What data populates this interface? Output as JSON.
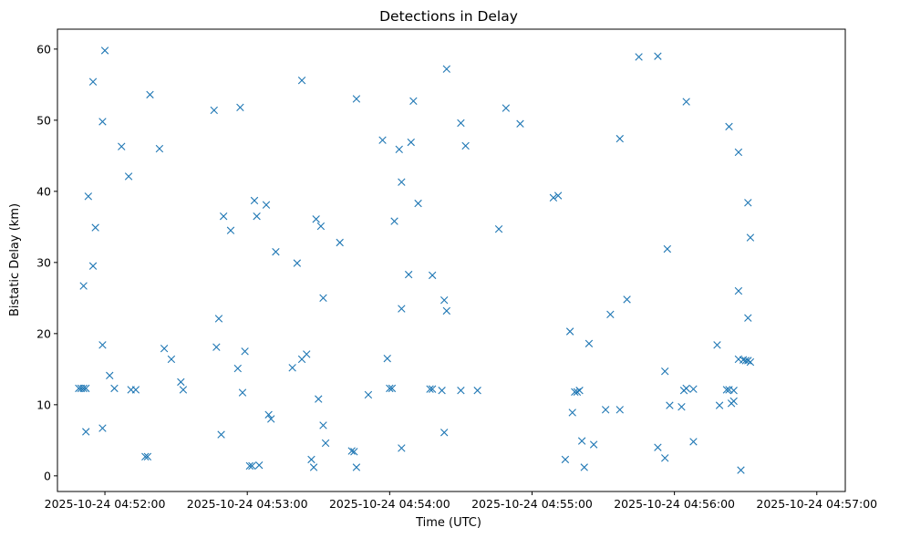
{
  "chart_data": {
    "type": "scatter",
    "title": "Detections in Delay",
    "xlabel": "Time (UTC)",
    "ylabel": "Bistatic Delay (km)",
    "x_ticks": [
      "2025-10-24 04:52:00",
      "2025-10-24 04:53:00",
      "2025-10-24 04:54:00",
      "2025-10-24 04:55:00",
      "2025-10-24 04:56:00",
      "2025-10-24 04:57:00"
    ],
    "y_ticks": [
      "0",
      "10",
      "20",
      "30",
      "40",
      "50",
      "60"
    ],
    "xlim": [
      "2025-10-24 04:51:40",
      "2025-10-24 04:57:12"
    ],
    "ylim": [
      -2.2,
      62.8
    ],
    "grid": false,
    "marker": "x",
    "color": "#1f77b4",
    "series": [
      {
        "points": [
          [
            "2025-10-24 04:51:49",
            12.3
          ],
          [
            "2025-10-24 04:51:50",
            12.3
          ],
          [
            "2025-10-24 04:51:51",
            12.3
          ],
          [
            "2025-10-24 04:51:52",
            12.3
          ],
          [
            "2025-10-24 04:51:51",
            26.7
          ],
          [
            "2025-10-24 04:51:52",
            6.2
          ],
          [
            "2025-10-24 04:51:53",
            39.3
          ],
          [
            "2025-10-24 04:51:55",
            29.5
          ],
          [
            "2025-10-24 04:51:55",
            55.4
          ],
          [
            "2025-10-24 04:51:56",
            34.9
          ],
          [
            "2025-10-24 04:51:59",
            49.8
          ],
          [
            "2025-10-24 04:51:59",
            18.4
          ],
          [
            "2025-10-24 04:51:59",
            6.7
          ],
          [
            "2025-10-24 04:52:00",
            59.8
          ],
          [
            "2025-10-24 04:52:02",
            14.1
          ],
          [
            "2025-10-24 04:52:04",
            12.3
          ],
          [
            "2025-10-24 04:52:07",
            46.3
          ],
          [
            "2025-10-24 04:52:10",
            42.1
          ],
          [
            "2025-10-24 04:52:11",
            12.1
          ],
          [
            "2025-10-24 04:52:13",
            12.1
          ],
          [
            "2025-10-24 04:52:17",
            2.7
          ],
          [
            "2025-10-24 04:52:18",
            2.7
          ],
          [
            "2025-10-24 04:52:19",
            53.6
          ],
          [
            "2025-10-24 04:52:23",
            46.0
          ],
          [
            "2025-10-24 04:52:25",
            17.9
          ],
          [
            "2025-10-24 04:52:28",
            16.4
          ],
          [
            "2025-10-24 04:52:32",
            13.2
          ],
          [
            "2025-10-24 04:52:33",
            12.1
          ],
          [
            "2025-10-24 04:52:46",
            51.4
          ],
          [
            "2025-10-24 04:52:47",
            18.1
          ],
          [
            "2025-10-24 04:52:48",
            22.1
          ],
          [
            "2025-10-24 04:52:49",
            5.8
          ],
          [
            "2025-10-24 04:52:50",
            36.5
          ],
          [
            "2025-10-24 04:52:53",
            34.5
          ],
          [
            "2025-10-24 04:52:56",
            15.1
          ],
          [
            "2025-10-24 04:52:57",
            51.8
          ],
          [
            "2025-10-24 04:52:58",
            11.7
          ],
          [
            "2025-10-24 04:52:59",
            17.5
          ],
          [
            "2025-10-24 04:53:01",
            1.4
          ],
          [
            "2025-10-24 04:53:02",
            1.4
          ],
          [
            "2025-10-24 04:53:03",
            38.7
          ],
          [
            "2025-10-24 04:53:04",
            36.5
          ],
          [
            "2025-10-24 04:53:05",
            1.5
          ],
          [
            "2025-10-24 04:53:08",
            38.1
          ],
          [
            "2025-10-24 04:53:09",
            8.6
          ],
          [
            "2025-10-24 04:53:10",
            8.0
          ],
          [
            "2025-10-24 04:53:12",
            31.5
          ],
          [
            "2025-10-24 04:53:19",
            15.2
          ],
          [
            "2025-10-24 04:53:21",
            29.9
          ],
          [
            "2025-10-24 04:53:23",
            55.6
          ],
          [
            "2025-10-24 04:53:23",
            16.4
          ],
          [
            "2025-10-24 04:53:25",
            17.1
          ],
          [
            "2025-10-24 04:53:27",
            2.3
          ],
          [
            "2025-10-24 04:53:28",
            1.2
          ],
          [
            "2025-10-24 04:53:29",
            36.1
          ],
          [
            "2025-10-24 04:53:30",
            10.8
          ],
          [
            "2025-10-24 04:53:31",
            35.1
          ],
          [
            "2025-10-24 04:53:32",
            25.0
          ],
          [
            "2025-10-24 04:53:32",
            7.1
          ],
          [
            "2025-10-24 04:53:33",
            4.6
          ],
          [
            "2025-10-24 04:53:39",
            32.8
          ],
          [
            "2025-10-24 04:53:44",
            3.5
          ],
          [
            "2025-10-24 04:53:45",
            3.4
          ],
          [
            "2025-10-24 04:53:46",
            1.2
          ],
          [
            "2025-10-24 04:53:46",
            53.0
          ],
          [
            "2025-10-24 04:53:51",
            11.4
          ],
          [
            "2025-10-24 04:53:57",
            47.2
          ],
          [
            "2025-10-24 04:53:59",
            16.5
          ],
          [
            "2025-10-24 04:54:00",
            12.3
          ],
          [
            "2025-10-24 04:54:01",
            12.3
          ],
          [
            "2025-10-24 04:54:02",
            35.8
          ],
          [
            "2025-10-24 04:54:04",
            45.9
          ],
          [
            "2025-10-24 04:54:05",
            41.3
          ],
          [
            "2025-10-24 04:54:05",
            23.5
          ],
          [
            "2025-10-24 04:54:05",
            3.9
          ],
          [
            "2025-10-24 04:54:08",
            28.3
          ],
          [
            "2025-10-24 04:54:09",
            46.9
          ],
          [
            "2025-10-24 04:54:10",
            52.7
          ],
          [
            "2025-10-24 04:54:12",
            38.3
          ],
          [
            "2025-10-24 04:54:17",
            12.2
          ],
          [
            "2025-10-24 04:54:18",
            28.2
          ],
          [
            "2025-10-24 04:54:18",
            12.2
          ],
          [
            "2025-10-24 04:54:22",
            12.0
          ],
          [
            "2025-10-24 04:54:23",
            24.7
          ],
          [
            "2025-10-24 04:54:23",
            6.1
          ],
          [
            "2025-10-24 04:54:24",
            57.2
          ],
          [
            "2025-10-24 04:54:24",
            23.2
          ],
          [
            "2025-10-24 04:54:30",
            49.6
          ],
          [
            "2025-10-24 04:54:30",
            12.0
          ],
          [
            "2025-10-24 04:54:32",
            46.4
          ],
          [
            "2025-10-24 04:54:37",
            12.0
          ],
          [
            "2025-10-24 04:54:46",
            34.7
          ],
          [
            "2025-10-24 04:54:49",
            51.7
          ],
          [
            "2025-10-24 04:54:55",
            49.5
          ],
          [
            "2025-10-24 04:55:09",
            39.1
          ],
          [
            "2025-10-24 04:55:11",
            39.4
          ],
          [
            "2025-10-24 04:55:14",
            2.3
          ],
          [
            "2025-10-24 04:55:16",
            20.3
          ],
          [
            "2025-10-24 04:55:17",
            8.9
          ],
          [
            "2025-10-24 04:55:18",
            11.8
          ],
          [
            "2025-10-24 04:55:19",
            11.8
          ],
          [
            "2025-10-24 04:55:20",
            12.0
          ],
          [
            "2025-10-24 04:55:21",
            4.9
          ],
          [
            "2025-10-24 04:55:22",
            1.2
          ],
          [
            "2025-10-24 04:55:24",
            18.6
          ],
          [
            "2025-10-24 04:55:26",
            4.4
          ],
          [
            "2025-10-24 04:55:31",
            9.3
          ],
          [
            "2025-10-24 04:55:33",
            22.7
          ],
          [
            "2025-10-24 04:55:37",
            9.3
          ],
          [
            "2025-10-24 04:55:37",
            47.4
          ],
          [
            "2025-10-24 04:55:40",
            24.8
          ],
          [
            "2025-10-24 04:55:45",
            58.9
          ],
          [
            "2025-10-24 04:55:53",
            59.0
          ],
          [
            "2025-10-24 04:55:53",
            4.0
          ],
          [
            "2025-10-24 04:55:56",
            14.7
          ],
          [
            "2025-10-24 04:55:56",
            2.5
          ],
          [
            "2025-10-24 04:55:57",
            31.9
          ],
          [
            "2025-10-24 04:55:58",
            9.9
          ],
          [
            "2025-10-24 04:56:03",
            9.7
          ],
          [
            "2025-10-24 04:56:04",
            12.0
          ],
          [
            "2025-10-24 04:56:05",
            12.3
          ],
          [
            "2025-10-24 04:56:05",
            52.6
          ],
          [
            "2025-10-24 04:56:08",
            4.8
          ],
          [
            "2025-10-24 04:56:08",
            12.2
          ],
          [
            "2025-10-24 04:56:18",
            18.4
          ],
          [
            "2025-10-24 04:56:19",
            9.9
          ],
          [
            "2025-10-24 04:56:22",
            12.1
          ],
          [
            "2025-10-24 04:56:23",
            49.1
          ],
          [
            "2025-10-24 04:56:23",
            12.1
          ],
          [
            "2025-10-24 04:56:24",
            10.2
          ],
          [
            "2025-10-24 04:56:25",
            10.5
          ],
          [
            "2025-10-24 04:56:25",
            12.0
          ],
          [
            "2025-10-24 04:56:27",
            45.5
          ],
          [
            "2025-10-24 04:56:27",
            26.0
          ],
          [
            "2025-10-24 04:56:27",
            16.4
          ],
          [
            "2025-10-24 04:56:28",
            0.8
          ],
          [
            "2025-10-24 04:56:29",
            16.3
          ],
          [
            "2025-10-24 04:56:30",
            16.2
          ],
          [
            "2025-10-24 04:56:31",
            16.2
          ],
          [
            "2025-10-24 04:56:31",
            22.2
          ],
          [
            "2025-10-24 04:56:31",
            38.4
          ],
          [
            "2025-10-24 04:56:32",
            16.0
          ],
          [
            "2025-10-24 04:56:32",
            33.5
          ]
        ]
      }
    ]
  }
}
